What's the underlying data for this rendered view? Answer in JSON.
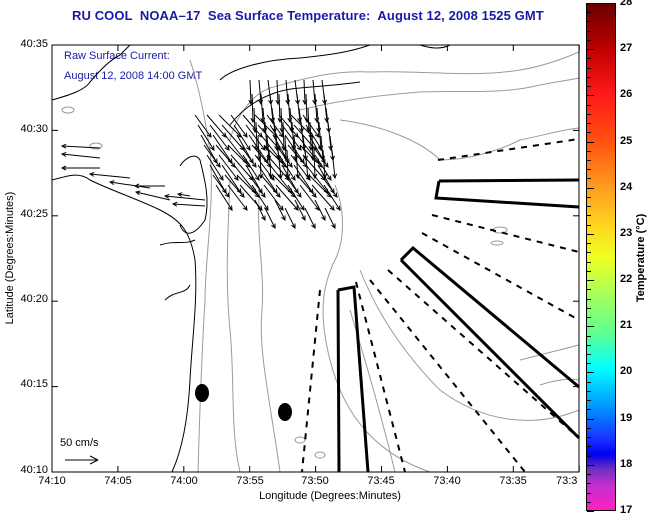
{
  "title": "RU COOL  NOAA–17  Sea Surface Temperature:  August 12, 2008 1525 GMT",
  "annotation": {
    "line1": "Raw Surface Current:",
    "line2": "August 12, 2008 14:00 GMT"
  },
  "axes": {
    "y_title": "Latitude (Degrees:Minutes)",
    "x_title": "Longitude (Degrees:Minutes)",
    "y_ticks": [
      "40:35",
      "40:30",
      "40:25",
      "40:20",
      "40:15",
      "40:10"
    ],
    "x_ticks": [
      "74:10",
      "74:05",
      "74:00",
      "73:55",
      "73:50",
      "73:45",
      "73:40",
      "73:35",
      "73:3"
    ]
  },
  "scale_vector": {
    "label": "50 cm/s"
  },
  "colorbar": {
    "title": "Temperature (°C)",
    "min": 17,
    "max": 28,
    "ticks": [
      "28",
      "27",
      "26",
      "25",
      "24",
      "23",
      "22",
      "21",
      "20",
      "19",
      "18",
      "17"
    ]
  },
  "colors": {
    "title": "#1a1aa6",
    "coastline": "#000000",
    "bathymetry": "#9a9a9a",
    "vectors": "#000000"
  }
}
